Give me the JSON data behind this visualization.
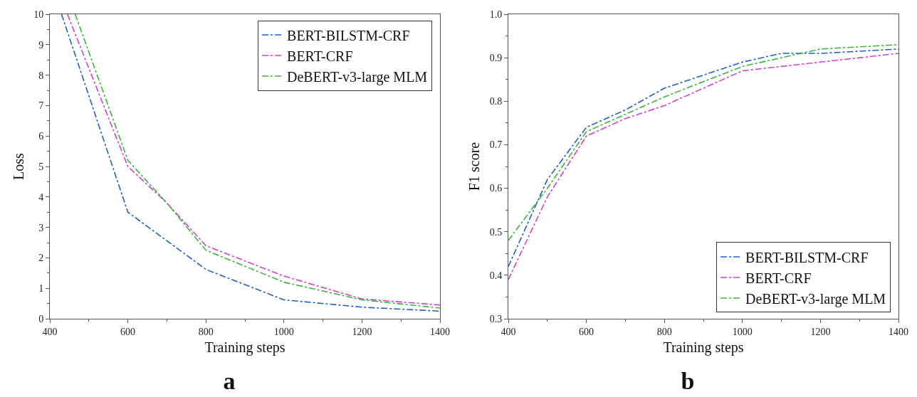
{
  "chart_data": [
    {
      "type": "line",
      "title": "a",
      "xlabel": "Training steps",
      "ylabel": "Loss",
      "xlim": [
        400,
        1400
      ],
      "xticks": [
        400,
        600,
        800,
        1000,
        1200,
        1400
      ],
      "ylim": [
        0,
        10
      ],
      "yticks": [
        0,
        1,
        2,
        3,
        4,
        5,
        6,
        7,
        8,
        9,
        10
      ],
      "grid": false,
      "legend": "top right",
      "marker": "none",
      "line_style": "dashdot",
      "series": [
        {
          "name": "BERT-BILSTM-CRF",
          "color": "#1f5fc8",
          "x": [
            430,
            600,
            800,
            1000,
            1200,
            1400
          ],
          "values": [
            10,
            3.5,
            1.62,
            0.62,
            0.38,
            0.25
          ]
        },
        {
          "name": "BERT-CRF",
          "color": "#d040d0",
          "x": [
            445,
            600,
            700,
            800,
            1000,
            1200,
            1400
          ],
          "values": [
            10,
            5.0,
            3.8,
            2.4,
            1.4,
            0.65,
            0.45
          ]
        },
        {
          "name": "DeBERT-v3-large MLM",
          "color": "#3cb43c",
          "x": [
            465,
            600,
            700,
            800,
            1000,
            1200,
            1400
          ],
          "values": [
            10,
            5.2,
            3.8,
            2.25,
            1.2,
            0.62,
            0.35
          ]
        }
      ]
    },
    {
      "type": "line",
      "title": "b",
      "xlabel": "Training steps",
      "ylabel": "F1 score",
      "xlim": [
        400,
        1400
      ],
      "xticks": [
        400,
        600,
        800,
        1000,
        1200,
        1400
      ],
      "ylim": [
        0.3,
        1.0
      ],
      "yticks": [
        0.3,
        0.4,
        0.5,
        0.6,
        0.7,
        0.8,
        0.9,
        {
          "value": 1.0,
          "label": "1.0"
        }
      ],
      "grid": false,
      "legend": "bottom right",
      "marker": "none",
      "line_style": "dashdot",
      "x": [
        400,
        500,
        600,
        700,
        800,
        900,
        1000,
        1100,
        1200,
        1300,
        1400
      ],
      "series": [
        {
          "name": "BERT-BILSTM-CRF",
          "color": "#1f5fc8",
          "values": [
            0.42,
            0.62,
            0.74,
            0.78,
            0.83,
            0.86,
            0.89,
            0.91,
            0.91,
            0.915,
            0.92
          ]
        },
        {
          "name": "BERT-CRF",
          "color": "#d040d0",
          "values": [
            0.39,
            0.58,
            0.72,
            0.76,
            0.79,
            0.83,
            0.87,
            0.88,
            0.89,
            0.9,
            0.91
          ]
        },
        {
          "name": "DeBERT-v3-large MLM",
          "color": "#3cb43c",
          "values": [
            0.48,
            0.6,
            0.73,
            0.77,
            0.81,
            0.845,
            0.88,
            0.9,
            0.92,
            0.925,
            0.93
          ]
        }
      ]
    }
  ]
}
